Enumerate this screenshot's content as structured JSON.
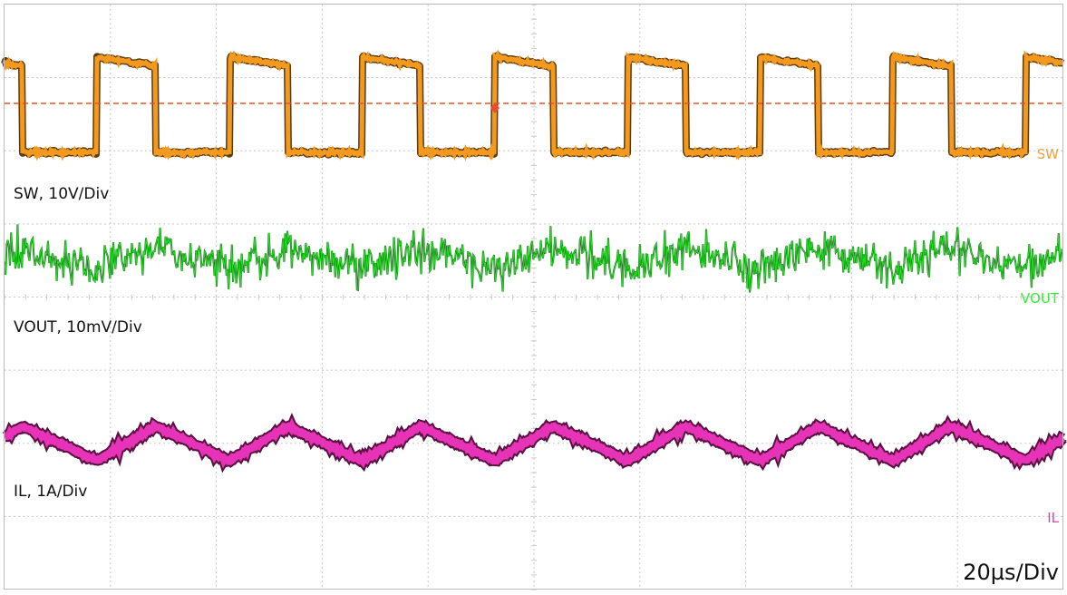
{
  "traces": [
    {
      "tag": "SW",
      "scale": "SW, 10V/Div"
    },
    {
      "tag": "VOUT",
      "scale": "VOUT, 10mV/Div"
    },
    {
      "tag": "IL",
      "scale": "IL, 1A/Div"
    }
  ],
  "timebase": "20µs/Div"
}
